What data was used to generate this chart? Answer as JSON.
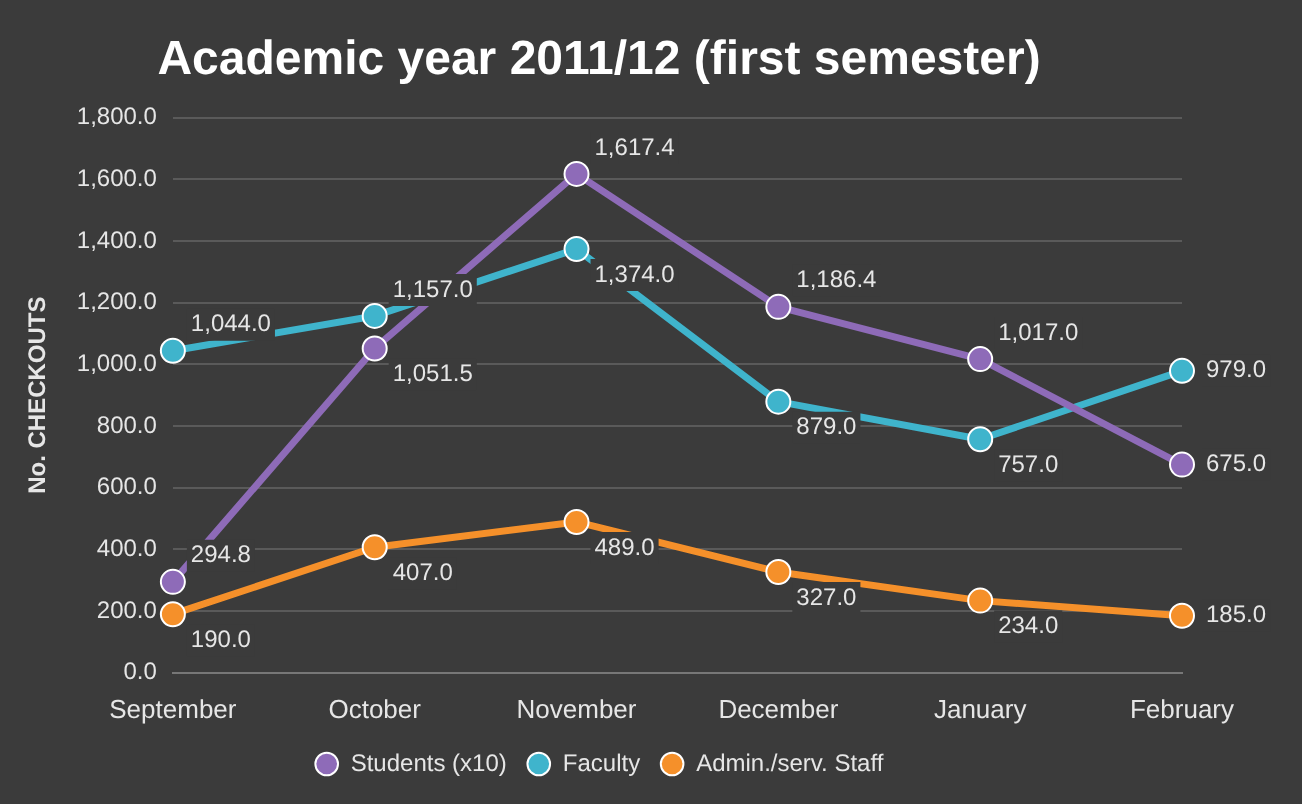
{
  "chart_data": {
    "type": "line",
    "title": "Academic year 2011/12 (first semester)",
    "ylabel": "No. CHECKOUTS",
    "categories": [
      "September",
      "October",
      "November",
      "December",
      "January",
      "February"
    ],
    "series": [
      {
        "name": "Students (x10)",
        "color": "#8e6bb8",
        "values": [
          294.8,
          1051.5,
          1617.4,
          1186.4,
          1017.0,
          675.0
        ],
        "value_labels": [
          "294.8",
          "1,051.5",
          "1,617.4",
          "1,186.4",
          "1,017.0",
          "675.0"
        ]
      },
      {
        "name": "Faculty",
        "color": "#3fb4cc",
        "values": [
          1044.0,
          1157.0,
          1374.0,
          879.0,
          757.0,
          979.0
        ],
        "value_labels": [
          "1,044.0",
          "1,157.0",
          "1,374.0",
          "879.0",
          "757.0",
          "979.0"
        ]
      },
      {
        "name": "Admin./serv. Staff",
        "color": "#f5902a",
        "values": [
          190.0,
          407.0,
          489.0,
          327.0,
          234.0,
          185.0
        ],
        "value_labels": [
          "190.0",
          "407.0",
          "489.0",
          "327.0",
          "234.0",
          "185.0"
        ]
      }
    ],
    "ylim": [
      0,
      1800
    ],
    "yticks": [
      {
        "value": 0,
        "label": "0.0"
      },
      {
        "value": 200,
        "label": "200.0"
      },
      {
        "value": 400,
        "label": "400.0"
      },
      {
        "value": 600,
        "label": "600.0"
      },
      {
        "value": 800,
        "label": "800.0"
      },
      {
        "value": 1000,
        "label": "1,000.0"
      },
      {
        "value": 1200,
        "label": "1,200.0"
      },
      {
        "value": 1400,
        "label": "1,400.0"
      },
      {
        "value": 1600,
        "label": "1,600.0"
      },
      {
        "value": 1800,
        "label": "1,800.0"
      }
    ],
    "grid": "y",
    "legend": "bottom",
    "marker": "circle",
    "line_style": "solid"
  }
}
